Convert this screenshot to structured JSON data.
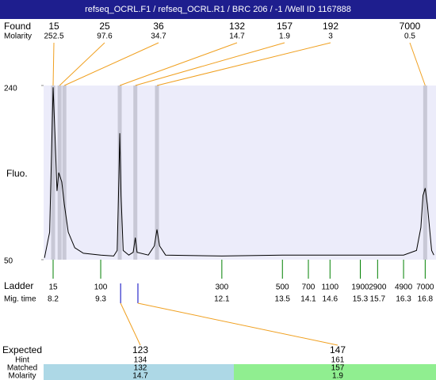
{
  "title": "refseq_OCRL.F1 / refseq_OCRL.R1 / BRC 206 / -1 /Well ID 1167888",
  "found": {
    "label": "Found",
    "molarity_label": "Molarity",
    "peaks": [
      {
        "size": 15,
        "molarity": 252.5,
        "time": 8.2
      },
      {
        "size": 25,
        "molarity": 97.6,
        "time": 8.35
      },
      {
        "size": 36,
        "molarity": 34.7,
        "time": 8.46
      },
      {
        "size": 132,
        "molarity": 14.7,
        "time": 9.74
      },
      {
        "size": 157,
        "molarity": 1.9,
        "time": 10.1
      },
      {
        "size": 192,
        "molarity": 3,
        "time": 10.6
      },
      {
        "size": 7000,
        "molarity": 0.5,
        "time": 16.8
      }
    ]
  },
  "chart_data": {
    "type": "line",
    "y_label": "Fluo.",
    "color": "#000000",
    "x": [
      8.0,
      8.12,
      8.17,
      8.2,
      8.24,
      8.29,
      8.33,
      8.4,
      8.46,
      8.55,
      8.7,
      8.9,
      9.3,
      9.6,
      9.68,
      9.72,
      9.74,
      9.77,
      9.82,
      9.95,
      10.05,
      10.1,
      10.14,
      10.4,
      10.54,
      10.6,
      10.66,
      10.8,
      12.1,
      13.5,
      15.0,
      16.3,
      16.6,
      16.7,
      16.75,
      16.8,
      16.85,
      16.95,
      17.0
    ],
    "values": [
      52,
      80,
      180,
      238,
      190,
      125,
      145,
      135,
      110,
      80,
      63,
      57,
      55,
      54,
      60,
      140,
      188,
      120,
      60,
      55,
      58,
      74,
      58,
      55,
      65,
      83,
      65,
      55,
      54,
      55,
      55,
      55,
      60,
      85,
      120,
      128,
      110,
      60,
      55
    ],
    "xlim": [
      7.98,
      17.05
    ],
    "ylim": [
      50,
      240
    ],
    "yticks": [
      50,
      240
    ]
  },
  "ladder": {
    "label": "Ladder",
    "time_label": "Mig. time",
    "sizes": [
      15,
      100,
      300,
      500,
      700,
      1100,
      1900,
      2900,
      4900,
      7000
    ],
    "times": [
      8.2,
      9.3,
      12.1,
      13.5,
      14.1,
      14.6,
      15.3,
      15.7,
      16.3,
      16.8
    ]
  },
  "expected": {
    "expected_label": "Expected",
    "hint_label": "Hint",
    "matched_label": "Matched",
    "molarity_label": "Molarity",
    "items": [
      {
        "expected": 123,
        "hint": 134,
        "matched": 132,
        "molarity": 14.7,
        "time": 9.76
      },
      {
        "expected": 147,
        "hint": 161,
        "matched": 157,
        "molarity": 1.9,
        "time": 10.16
      }
    ]
  }
}
